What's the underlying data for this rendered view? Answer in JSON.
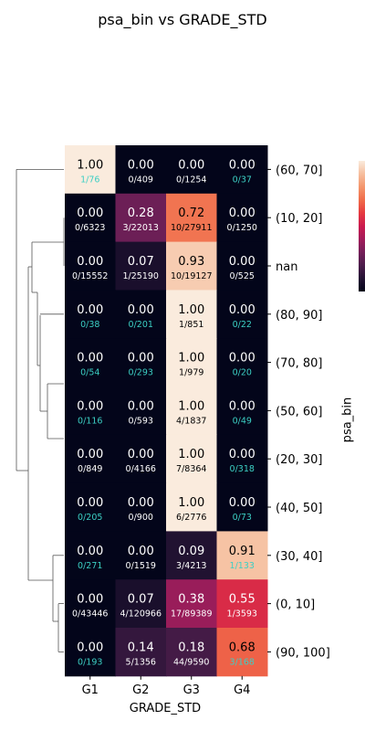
{
  "chart_data": {
    "type": "heatmap",
    "title": "psa_bin vs GRADE_STD",
    "xlabel": "GRADE_STD",
    "ylabel": "psa_bin",
    "columns": [
      "G1",
      "G2",
      "G3",
      "G4"
    ],
    "rows": [
      "(60, 70]",
      "(10, 20]",
      "nan",
      "(80, 90]",
      "(70, 80]",
      "(50, 60]",
      "(20, 30]",
      "(40, 50]",
      "(30, 40]",
      "(0, 10]",
      "(90, 100]"
    ],
    "values": [
      [
        1.0,
        0.0,
        0.0,
        0.0
      ],
      [
        0.0,
        0.28,
        0.72,
        0.0
      ],
      [
        0.0,
        0.07,
        0.93,
        0.0
      ],
      [
        0.0,
        0.0,
        1.0,
        0.0
      ],
      [
        0.0,
        0.0,
        1.0,
        0.0
      ],
      [
        0.0,
        0.0,
        1.0,
        0.0
      ],
      [
        0.0,
        0.0,
        1.0,
        0.0
      ],
      [
        0.0,
        0.0,
        1.0,
        0.0
      ],
      [
        0.0,
        0.0,
        0.09,
        0.91
      ],
      [
        0.0,
        0.07,
        0.38,
        0.55
      ],
      [
        0.0,
        0.14,
        0.18,
        0.68
      ]
    ],
    "value_labels": [
      [
        "1.00",
        "0.00",
        "0.00",
        "0.00"
      ],
      [
        "0.00",
        "0.28",
        "0.72",
        "0.00"
      ],
      [
        "0.00",
        "0.07",
        "0.93",
        "0.00"
      ],
      [
        "0.00",
        "0.00",
        "1.00",
        "0.00"
      ],
      [
        "0.00",
        "0.00",
        "1.00",
        "0.00"
      ],
      [
        "0.00",
        "0.00",
        "1.00",
        "0.00"
      ],
      [
        "0.00",
        "0.00",
        "1.00",
        "0.00"
      ],
      [
        "0.00",
        "0.00",
        "1.00",
        "0.00"
      ],
      [
        "0.00",
        "0.00",
        "0.09",
        "0.91"
      ],
      [
        "0.00",
        "0.07",
        "0.38",
        "0.55"
      ],
      [
        "0.00",
        "0.14",
        "0.18",
        "0.68"
      ]
    ],
    "count_labels": [
      [
        "1/76",
        "0/409",
        "0/1254",
        "0/37"
      ],
      [
        "0/6323",
        "3/22013",
        "10/27911",
        "0/1250"
      ],
      [
        "0/15552",
        "1/25190",
        "10/19127",
        "0/525"
      ],
      [
        "0/38",
        "0/201",
        "1/851",
        "0/22"
      ],
      [
        "0/54",
        "0/293",
        "1/979",
        "0/20"
      ],
      [
        "0/116",
        "0/593",
        "4/1837",
        "0/49"
      ],
      [
        "0/849",
        "0/4166",
        "7/8364",
        "0/318"
      ],
      [
        "0/205",
        "0/900",
        "6/2776",
        "0/73"
      ],
      [
        "0/271",
        "0/1519",
        "3/4213",
        "1/133"
      ],
      [
        "0/43446",
        "4/120966",
        "17/89389",
        "1/3593"
      ],
      [
        "0/193",
        "5/1356",
        "44/9590",
        "3/168"
      ]
    ],
    "count_label_highlight": [
      [
        true,
        false,
        false,
        true
      ],
      [
        false,
        false,
        false,
        false
      ],
      [
        false,
        false,
        false,
        false
      ],
      [
        true,
        true,
        false,
        true
      ],
      [
        true,
        true,
        false,
        true
      ],
      [
        true,
        false,
        false,
        true
      ],
      [
        false,
        false,
        false,
        true
      ],
      [
        true,
        false,
        false,
        true
      ],
      [
        true,
        false,
        false,
        true
      ],
      [
        false,
        false,
        false,
        false
      ],
      [
        true,
        false,
        false,
        true
      ]
    ],
    "vlim": [
      0,
      1
    ],
    "colormap": "rocket",
    "highlight_color": "#3ccfc4",
    "dendrogram": "left",
    "colorbar": "right",
    "grid": false
  }
}
